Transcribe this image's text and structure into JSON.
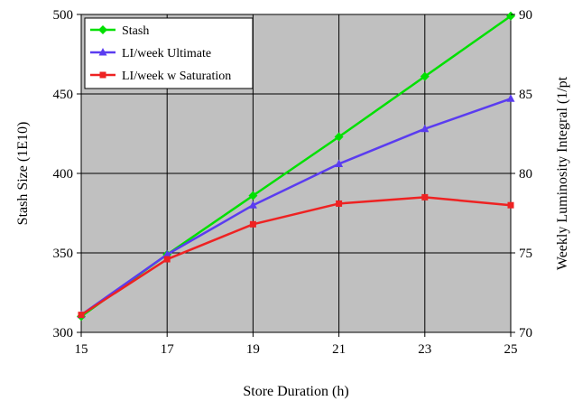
{
  "chart_data": {
    "type": "line",
    "title": "",
    "xlabel": "Store Duration (h)",
    "ylabel": "Stash Size (1E10)",
    "y2label": "Weekly Luminosity Integral (1/pt",
    "x": [
      15,
      17,
      19,
      21,
      23,
      25
    ],
    "xlim": [
      15,
      25
    ],
    "xticks": [
      "15",
      "17",
      "19",
      "21",
      "23",
      "25"
    ],
    "ylim": [
      300,
      500
    ],
    "yticks": [
      "300",
      "350",
      "400",
      "450",
      "500"
    ],
    "y2lim": [
      70,
      90
    ],
    "y2ticks": [
      "70",
      "75",
      "80",
      "85",
      "90"
    ],
    "grid": true,
    "legend_position": "top-left",
    "plot_background": "#c0c0c0",
    "series": [
      {
        "name": "Stash",
        "axis": "left",
        "color": "#00e000",
        "marker": "diamond",
        "values": [
          310,
          349,
          386,
          423,
          461,
          499
        ]
      },
      {
        "name": "LI/week Ultimate",
        "axis": "right",
        "color": "#5a3cf0",
        "marker": "triangle",
        "values": [
          71.1,
          74.9,
          78.0,
          80.6,
          82.8,
          84.7
        ]
      },
      {
        "name": "LI/week w Saturation",
        "axis": "right",
        "color": "#ee2222",
        "marker": "square",
        "values": [
          71.1,
          74.6,
          76.8,
          78.1,
          78.5,
          78.0
        ]
      }
    ]
  }
}
